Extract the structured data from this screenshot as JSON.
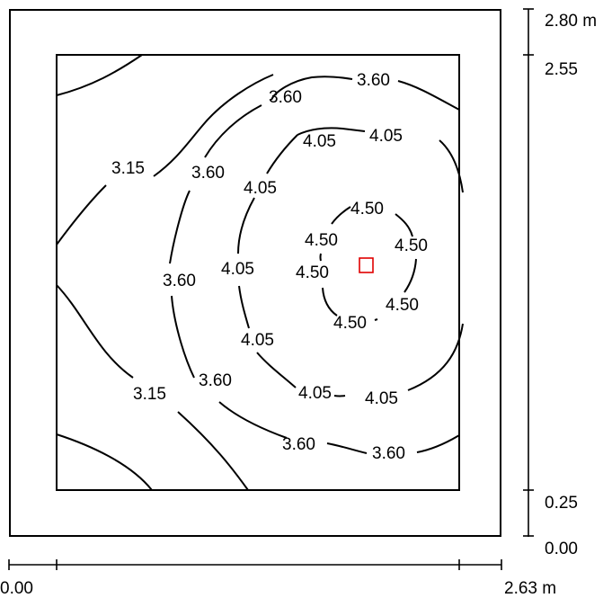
{
  "colors": {
    "marker": "#e00000",
    "line": "#000000"
  },
  "axes": {
    "x": {
      "ticks": [
        {
          "label": "0.00"
        },
        {
          "label": "2.63 m"
        }
      ]
    },
    "y": {
      "ticks": [
        {
          "label": "2.80 m"
        },
        {
          "label": "2.55"
        },
        {
          "label": "0.25"
        },
        {
          "label": "0.00"
        }
      ]
    }
  },
  "contour_labels": [
    "3.60",
    "3.60",
    "4.05",
    "4.05",
    "3.15",
    "3.60",
    "4.05",
    "4.50",
    "4.50",
    "4.50",
    "3.60",
    "4.05",
    "4.50",
    "4.50",
    "4.50",
    "4.05",
    "3.15",
    "3.60",
    "4.05",
    "4.05",
    "3.60",
    "3.60"
  ],
  "marker": {
    "shape": "square",
    "color": "#e00000"
  }
}
